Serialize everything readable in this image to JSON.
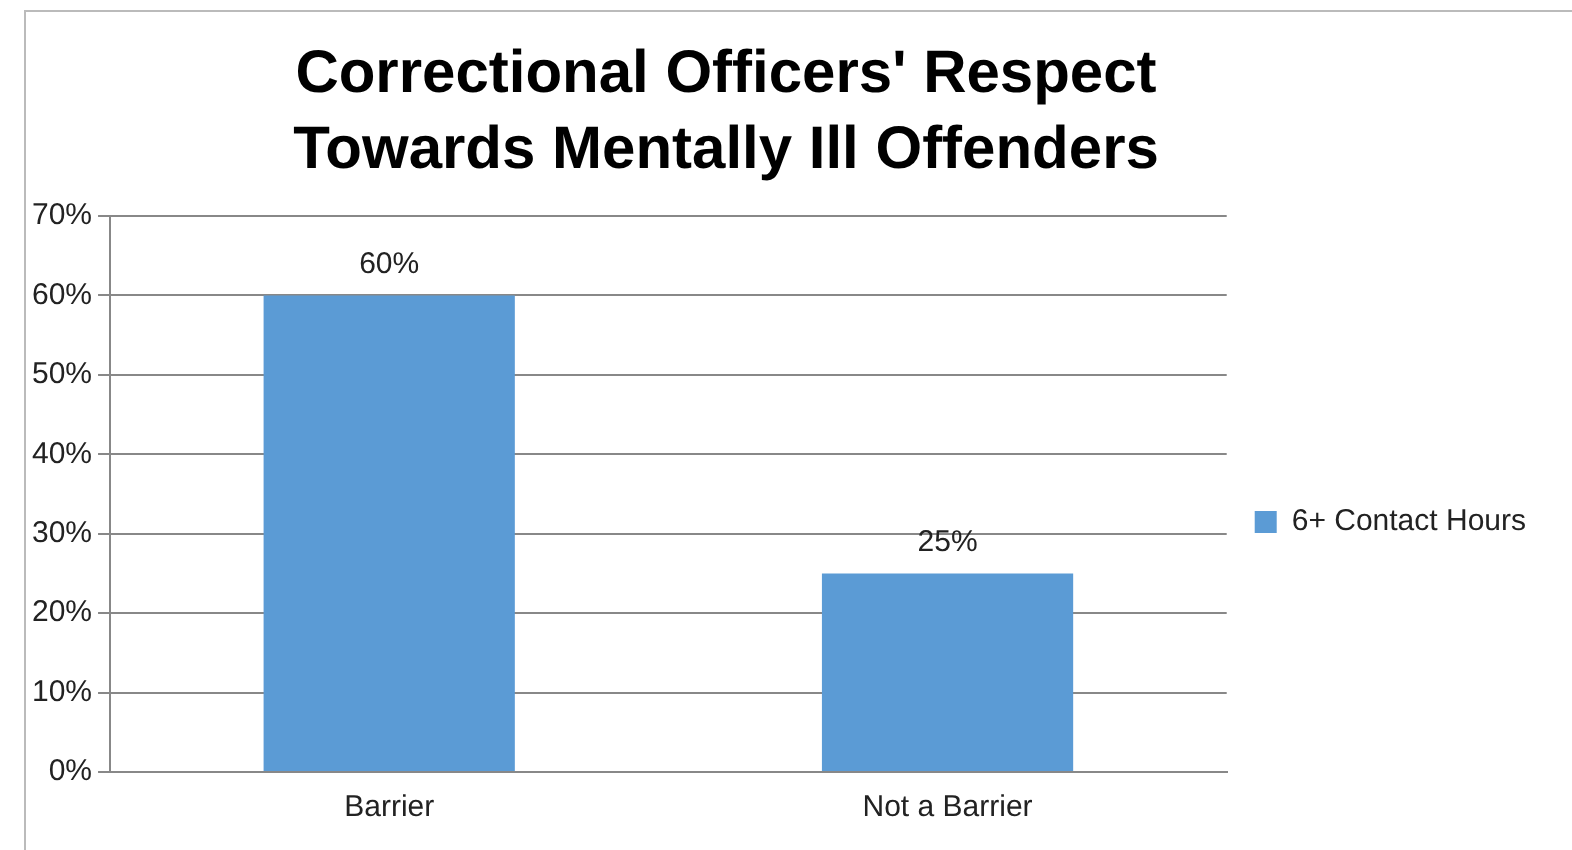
{
  "chart_data": {
    "type": "bar",
    "title": "Correctional Officers' Respect Towards Mentally Ill Offenders",
    "categories": [
      "Barrier",
      "Not a Barrier"
    ],
    "series": [
      {
        "name": "6+ Contact Hours",
        "color": "#5b9bd5",
        "values": [
          60,
          25
        ],
        "value_labels": [
          "60%",
          "25%"
        ]
      }
    ],
    "ylim": [
      0,
      70
    ],
    "yticks": [
      {
        "value": 0,
        "label": "0%"
      },
      {
        "value": 10,
        "label": "10%"
      },
      {
        "value": 20,
        "label": "20%"
      },
      {
        "value": 30,
        "label": "30%"
      },
      {
        "value": 40,
        "label": "40%"
      },
      {
        "value": 50,
        "label": "50%"
      },
      {
        "value": 60,
        "label": "60%"
      },
      {
        "value": 70,
        "label": "70%"
      }
    ],
    "grid": "y",
    "legend": "right"
  }
}
